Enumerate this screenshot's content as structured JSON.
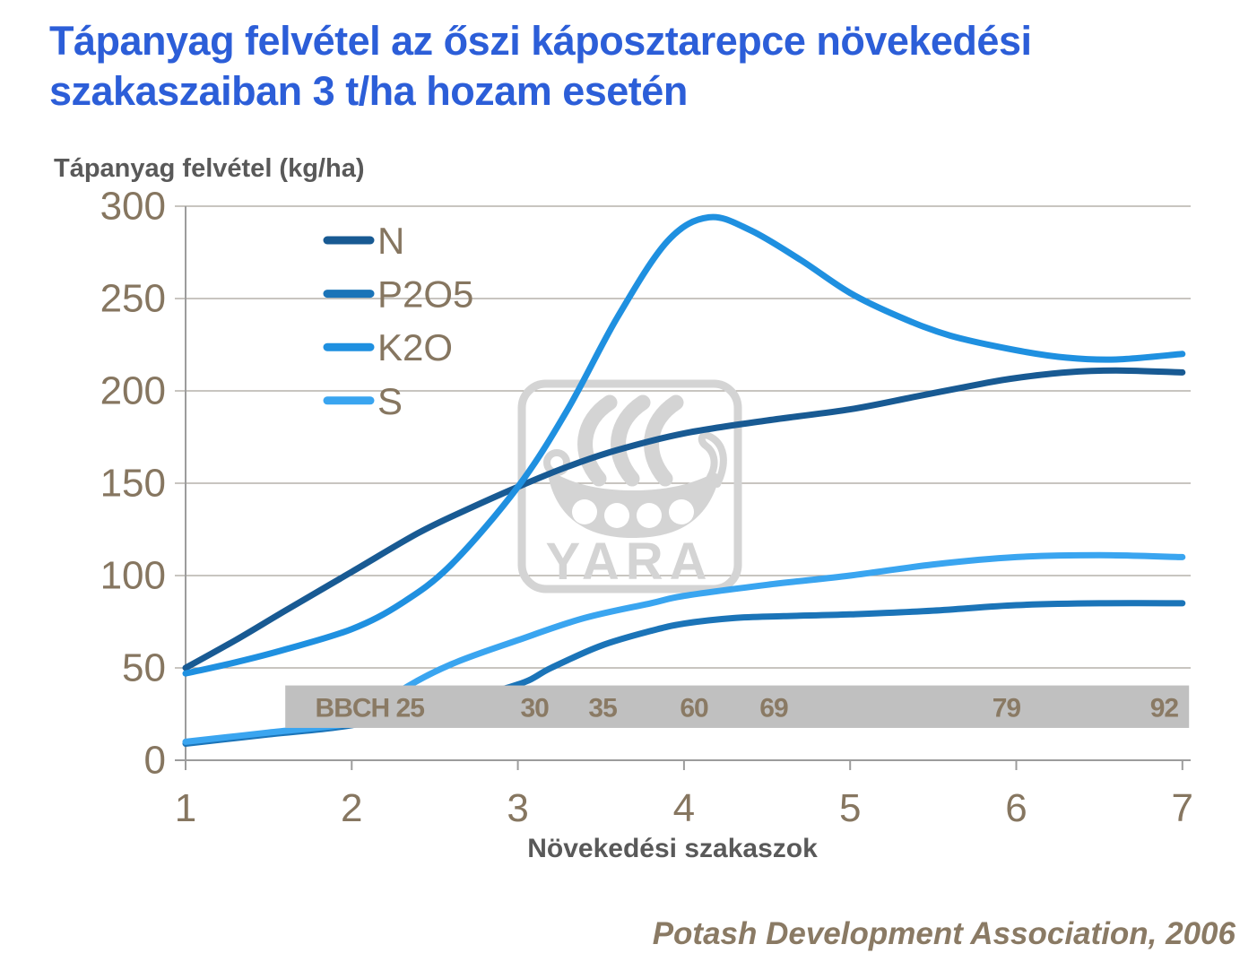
{
  "page": {
    "title": "Tápanyag felvétel az őszi káposztarepce növekedési szakaszaiban 3 t/ha hozam esetén",
    "source": "Potash Development Association, 2006"
  },
  "colors": {
    "title_text": "#2c5ed8",
    "axis_title_text": "#595959",
    "tick_text": "#867660",
    "grid_line": "#a8a29b",
    "axis_line": "#9c9c9c",
    "bbch_band_fill": "#c0c0c0",
    "bbch_label_text": "#8a7a64",
    "legend_text": "#867660",
    "watermark_gray": "#d4d4d4"
  },
  "chart_data": {
    "type": "line",
    "title": "Tápanyag felvétel az őszi káposztarepce növekedési szakaszaiban 3 t/ha hozam esetén",
    "ylabel": "Tápanyag felvétel (kg/ha)",
    "xlabel": "Növekedési szakaszok",
    "xlim": [
      1,
      7
    ],
    "ylim": [
      0,
      300
    ],
    "x_ticks": [
      1,
      2,
      3,
      4,
      5,
      6,
      7
    ],
    "y_ticks": [
      0,
      50,
      100,
      150,
      200,
      250,
      300
    ],
    "grid": true,
    "legend_position": "upper left inside",
    "series": [
      {
        "name": "N",
        "color": "#185a93",
        "points": [
          [
            1,
            50
          ],
          [
            1.3,
            65
          ],
          [
            1.6,
            81
          ],
          [
            2,
            102
          ],
          [
            2.4,
            123
          ],
          [
            2.7,
            136
          ],
          [
            3,
            148
          ],
          [
            3.3,
            159
          ],
          [
            3.6,
            168
          ],
          [
            4,
            177
          ],
          [
            4.5,
            184
          ],
          [
            5,
            190
          ],
          [
            5.4,
            197
          ],
          [
            5.8,
            204
          ],
          [
            6,
            207
          ],
          [
            6.3,
            210
          ],
          [
            6.6,
            211
          ],
          [
            7,
            210
          ]
        ]
      },
      {
        "name": "P2O5",
        "color": "#1b74b8",
        "points": [
          [
            1,
            9
          ],
          [
            1.5,
            14
          ],
          [
            2,
            19
          ],
          [
            2.5,
            29
          ],
          [
            3,
            41
          ],
          [
            3.2,
            50
          ],
          [
            3.5,
            62
          ],
          [
            3.8,
            70
          ],
          [
            4,
            74
          ],
          [
            4.3,
            77
          ],
          [
            4.6,
            78
          ],
          [
            5,
            79
          ],
          [
            5.5,
            81
          ],
          [
            6,
            84
          ],
          [
            6.5,
            85
          ],
          [
            7,
            85
          ]
        ]
      },
      {
        "name": "K2O",
        "color": "#1f90e0",
        "points": [
          [
            1,
            47
          ],
          [
            1.3,
            53
          ],
          [
            1.6,
            60
          ],
          [
            2,
            71
          ],
          [
            2.3,
            85
          ],
          [
            2.6,
            106
          ],
          [
            3,
            148
          ],
          [
            3.3,
            190
          ],
          [
            3.6,
            240
          ],
          [
            3.9,
            281
          ],
          [
            4.15,
            294
          ],
          [
            4.4,
            287
          ],
          [
            4.7,
            271
          ],
          [
            5,
            253
          ],
          [
            5.3,
            240
          ],
          [
            5.6,
            230
          ],
          [
            6,
            222
          ],
          [
            6.3,
            218
          ],
          [
            6.6,
            217
          ],
          [
            7,
            220
          ]
        ]
      },
      {
        "name": "S",
        "color": "#3aa5f0",
        "points": [
          [
            1,
            10
          ],
          [
            1.5,
            15
          ],
          [
            2,
            20
          ],
          [
            2.15,
            27
          ],
          [
            2.3,
            38
          ],
          [
            2.6,
            52
          ],
          [
            3,
            65
          ],
          [
            3.4,
            77
          ],
          [
            3.8,
            85
          ],
          [
            4,
            89
          ],
          [
            4.5,
            95
          ],
          [
            5,
            100
          ],
          [
            5.5,
            106
          ],
          [
            6,
            110
          ],
          [
            6.5,
            111
          ],
          [
            7,
            110
          ]
        ]
      }
    ],
    "bbch_band": {
      "x_range_stages": [
        1.6,
        7.04
      ],
      "y_range_values": [
        17.5,
        40.5
      ],
      "labels": [
        {
          "text": "BBCH 25",
          "stage": 1.78,
          "anchor": "start"
        },
        {
          "text": "30",
          "stage": 3.1,
          "anchor": "middle"
        },
        {
          "text": "35",
          "stage": 3.51,
          "anchor": "middle"
        },
        {
          "text": "60",
          "stage": 4.06,
          "anchor": "middle"
        },
        {
          "text": "69",
          "stage": 4.54,
          "anchor": "middle"
        },
        {
          "text": "79",
          "stage": 5.94,
          "anchor": "middle"
        },
        {
          "text": "92",
          "stage": 6.89,
          "anchor": "middle"
        }
      ]
    },
    "watermark_text": "YARA"
  }
}
